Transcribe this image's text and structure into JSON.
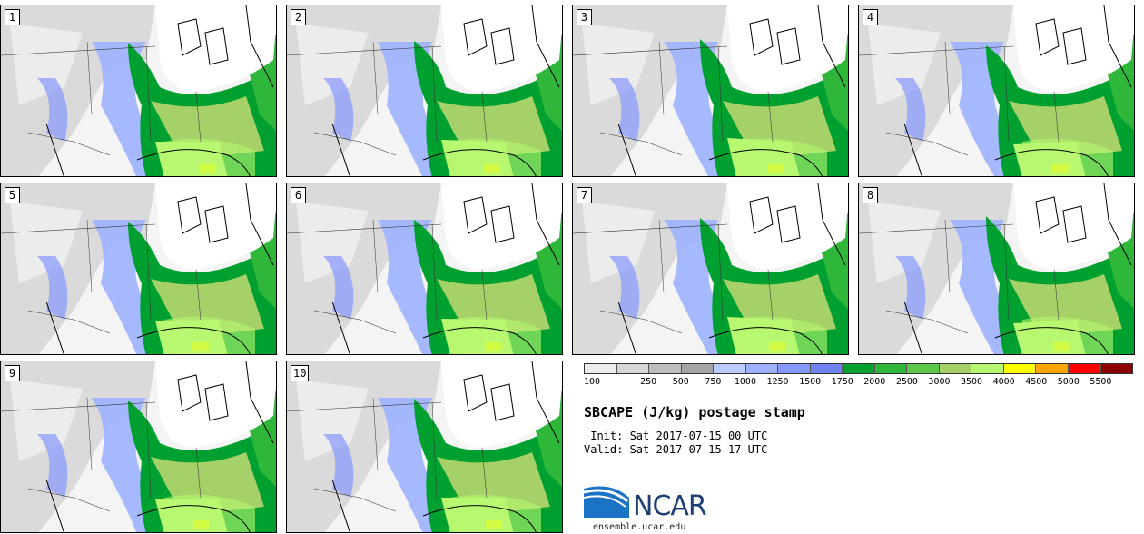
{
  "panels": [
    {
      "label": "1"
    },
    {
      "label": "2"
    },
    {
      "label": "3"
    },
    {
      "label": "4"
    },
    {
      "label": "5"
    },
    {
      "label": "6"
    },
    {
      "label": "7"
    },
    {
      "label": "8"
    },
    {
      "label": "9"
    },
    {
      "label": "10"
    }
  ],
  "legend": {
    "colors": [
      "#ececec",
      "#d7d7d7",
      "#bebebe",
      "#a4a4a4",
      "#bccbff",
      "#9fb2ff",
      "#8699ff",
      "#6f83f5",
      "#00a030",
      "#2fb73a",
      "#5ec84a",
      "#a6d068",
      "#b8f870",
      "#ffff00",
      "#ffa500",
      "#ff0000",
      "#8b0000"
    ],
    "labels": [
      "100",
      "250",
      "500",
      "750",
      "1000",
      "1250",
      "1500",
      "1750",
      "2000",
      "2500",
      "3000",
      "3500",
      "4000",
      "4500",
      "5000",
      "5500"
    ]
  },
  "title": "SBCAPE (J/kg) postage stamp",
  "init": " Init: Sat 2017-07-15 00 UTC",
  "valid": "Valid: Sat 2017-07-15 17 UTC",
  "logo_text": "NCAR",
  "site": "ensemble.ucar.edu"
}
